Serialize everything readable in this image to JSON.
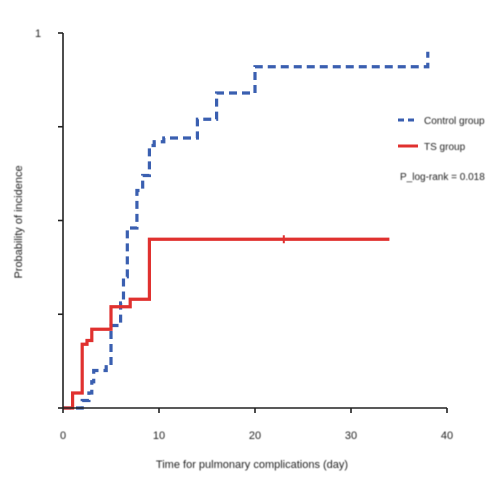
{
  "chart_data": {
    "type": "line",
    "xlabel": "Time for pulmonary complications (day)",
    "ylabel": "Probability of incidence",
    "xlim": [
      0,
      40
    ],
    "ylim": [
      0,
      1
    ],
    "xticks": [
      0,
      10,
      20,
      30,
      40
    ],
    "xtick_labels": [
      "0",
      "10",
      "20",
      "30",
      "40"
    ],
    "yticks": [
      0,
      0.25,
      0.5,
      0.75,
      1
    ],
    "ytick_labels": [
      "",
      "",
      "",
      "",
      "1"
    ],
    "legend_placement": "right",
    "annotation": "P_log-rank = 0.018",
    "series": [
      {
        "name": "Control group",
        "style": "dashed",
        "color": "#3a5fb0",
        "steps": [
          [
            0,
            0
          ],
          [
            2,
            0.02
          ],
          [
            2.7,
            0.04
          ],
          [
            3,
            0.07
          ],
          [
            3.2,
            0.1
          ],
          [
            4.5,
            0.11
          ],
          [
            5,
            0.22
          ],
          [
            6,
            0.28
          ],
          [
            6.3,
            0.35
          ],
          [
            6.7,
            0.48
          ],
          [
            7.7,
            0.58
          ],
          [
            8.3,
            0.62
          ],
          [
            9,
            0.7
          ],
          [
            9.5,
            0.71
          ],
          [
            10.5,
            0.72
          ],
          [
            14,
            0.77
          ],
          [
            16,
            0.84
          ],
          [
            20,
            0.91
          ],
          [
            38,
            0.95
          ]
        ]
      },
      {
        "name": "TS group",
        "style": "solid",
        "color": "#e0312f",
        "steps": [
          [
            0,
            0
          ],
          [
            1,
            0.04
          ],
          [
            2,
            0.17
          ],
          [
            2.5,
            0.18
          ],
          [
            3,
            0.21
          ],
          [
            5,
            0.27
          ],
          [
            7,
            0.29
          ],
          [
            9,
            0.45
          ],
          [
            34,
            0.45
          ]
        ],
        "censor_ticks": [
          23
        ]
      }
    ]
  }
}
